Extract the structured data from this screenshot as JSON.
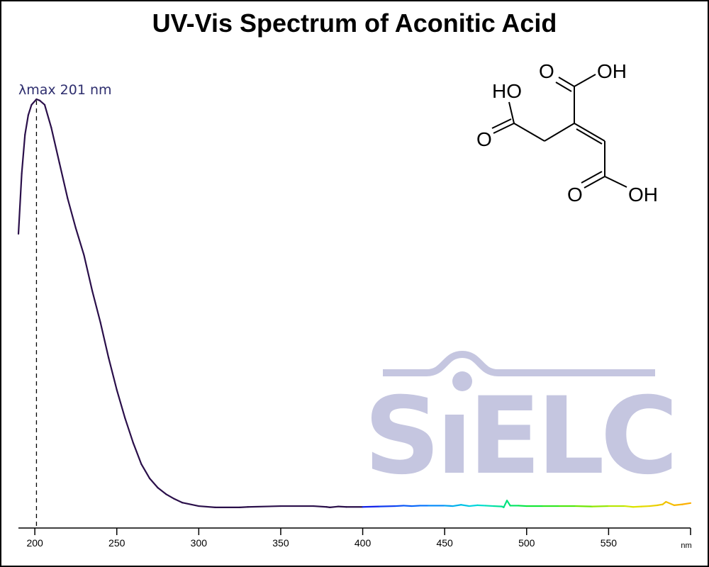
{
  "chart_data": {
    "type": "line",
    "title": "UV-Vis Spectrum of Aconitic Acid",
    "xlabel": "nm",
    "ylabel": "",
    "xlim": [
      190,
      600
    ],
    "ylim": [
      0,
      1.0
    ],
    "xticks": [
      200,
      250,
      300,
      350,
      400,
      450,
      500,
      550
    ],
    "grid": false,
    "annotation": {
      "text": "λmax  201 nm",
      "x": 201
    },
    "line_color": "#2a0f4a",
    "annotation_color": "#2e2e6e",
    "x": [
      190,
      192,
      194,
      196,
      198,
      201,
      203,
      206,
      210,
      215,
      220,
      225,
      230,
      235,
      240,
      245,
      250,
      255,
      260,
      265,
      270,
      275,
      280,
      285,
      290,
      300,
      310,
      325,
      330,
      350,
      370,
      378,
      380,
      385,
      390,
      400,
      410,
      420,
      425,
      430,
      435,
      440,
      450,
      455,
      460,
      465,
      470,
      475,
      480,
      485,
      486,
      488,
      490,
      495,
      500,
      510,
      520,
      530,
      540,
      550,
      560,
      565,
      570,
      575,
      580,
      583,
      585,
      590,
      595,
      600
    ],
    "y": [
      0.685,
      0.826,
      0.917,
      0.963,
      0.987,
      1.0,
      0.997,
      0.987,
      0.934,
      0.851,
      0.768,
      0.698,
      0.635,
      0.552,
      0.478,
      0.395,
      0.32,
      0.254,
      0.196,
      0.146,
      0.113,
      0.091,
      0.076,
      0.065,
      0.056,
      0.048,
      0.045,
      0.045,
      0.046,
      0.048,
      0.048,
      0.046,
      0.045,
      0.047,
      0.046,
      0.046,
      0.047,
      0.048,
      0.049,
      0.048,
      0.049,
      0.049,
      0.049,
      0.048,
      0.051,
      0.048,
      0.05,
      0.049,
      0.048,
      0.047,
      0.045,
      0.061,
      0.049,
      0.049,
      0.048,
      0.048,
      0.048,
      0.048,
      0.047,
      0.048,
      0.048,
      0.046,
      0.047,
      0.048,
      0.05,
      0.052,
      0.058,
      0.05,
      0.052,
      0.055
    ]
  },
  "molecule": {
    "labels": [
      "HO",
      "O",
      "O",
      "OH",
      "O",
      "OH"
    ]
  },
  "watermark": {
    "text": "SIELC",
    "color": "#c5c6e0"
  }
}
